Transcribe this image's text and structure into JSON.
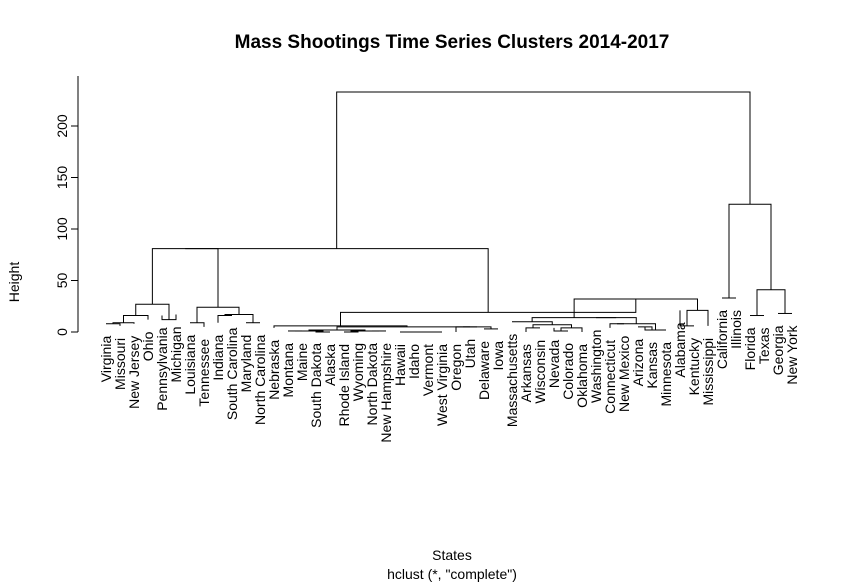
{
  "chart_data": {
    "type": "dendrogram",
    "title": "Mass Shootings Time Series Clusters 2014-2017",
    "xlabel": "States",
    "subtitle": "hclust (*, \"complete\")",
    "ylabel": "Height",
    "ylim": [
      0,
      240
    ],
    "yticks": [
      0,
      50,
      100,
      150,
      200
    ],
    "leaves": [
      "Virginia",
      "Missouri",
      "New Jersey",
      "Ohio",
      "Pennsylvania",
      "Michigan",
      "Louisiana",
      "Tennessee",
      "Indiana",
      "South Carolina",
      "Maryland",
      "North Carolina",
      "Nebraska",
      "Montana",
      "Maine",
      "South Dakota",
      "Alaska",
      "Rhode Island",
      "Wyoming",
      "North Dakota",
      "New Hampshire",
      "Hawaii",
      "Idaho",
      "Vermont",
      "West Virginia",
      "Oregon",
      "Utah",
      "Delaware",
      "Iowa",
      "Massachusetts",
      "Arkansas",
      "Wisconsin",
      "Nevada",
      "Colorado",
      "Oklahoma",
      "Washington",
      "Connecticut",
      "New Mexico",
      "Arizona",
      "Kansas",
      "Minnesota",
      "Alabama",
      "Kentucky",
      "Mississippi",
      "California",
      "Illinois",
      "Florida",
      "Texas",
      "Georgia",
      "New York"
    ],
    "leaf_heights": [
      8,
      6,
      8,
      12,
      16,
      17,
      9,
      5,
      9,
      16,
      9,
      9,
      4,
      1,
      1,
      1,
      0,
      0,
      1,
      1,
      1,
      0,
      0,
      0,
      0,
      0,
      5,
      3,
      3,
      10,
      0,
      4,
      4,
      1,
      0,
      14,
      4,
      8,
      5,
      2,
      2,
      21,
      6,
      6,
      33,
      33,
      16,
      16,
      18,
      18
    ],
    "merges": [
      [
        [
          0,
          1
        ],
        8
      ],
      [
        [
          0,
          2
        ],
        9
      ],
      [
        [
          0,
          3
        ],
        16
      ],
      [
        [
          4,
          5
        ],
        12
      ],
      [
        [
          0,
          4
        ],
        27
      ],
      [
        [
          6,
          7
        ],
        9
      ],
      [
        [
          8,
          9
        ],
        16
      ],
      [
        [
          10,
          11
        ],
        9
      ],
      [
        [
          8,
          10
        ],
        17
      ],
      [
        [
          6,
          8
        ],
        24
      ],
      [
        [
          0,
          6
        ],
        81
      ],
      [
        [
          13,
          14
        ],
        1
      ],
      [
        [
          15,
          16
        ],
        0
      ],
      [
        [
          13,
          15
        ],
        1
      ],
      [
        [
          17,
          18
        ],
        0
      ],
      [
        [
          19,
          20
        ],
        1
      ],
      [
        [
          17,
          19
        ],
        1
      ],
      [
        [
          13,
          17
        ],
        2
      ],
      [
        [
          21,
          22
        ],
        0
      ],
      [
        [
          23,
          24
        ],
        0
      ],
      [
        [
          21,
          23
        ],
        0
      ],
      [
        [
          25,
          26
        ],
        5
      ],
      [
        [
          27,
          28
        ],
        3
      ],
      [
        [
          25,
          27
        ],
        5
      ],
      [
        [
          13,
          25
        ],
        5
      ],
      [
        [
          12,
          13
        ],
        6
      ],
      [
        [
          30,
          31
        ],
        4
      ],
      [
        [
          32,
          33
        ],
        1
      ],
      [
        [
          32,
          34
        ],
        4
      ],
      [
        [
          30,
          32
        ],
        7
      ],
      [
        [
          29,
          30
        ],
        10
      ],
      [
        [
          36,
          37
        ],
        8
      ],
      [
        [
          38,
          39
        ],
        5
      ],
      [
        [
          38,
          40
        ],
        2
      ],
      [
        [
          36,
          38
        ],
        8
      ],
      [
        [
          35,
          36
        ],
        14
      ],
      [
        [
          29,
          35
        ],
        14
      ],
      [
        [
          41,
          42
        ],
        6
      ],
      [
        [
          41,
          43
        ],
        21
      ],
      [
        [
          29,
          41
        ],
        32
      ],
      [
        [
          12,
          29
        ],
        19
      ],
      [
        [
          0,
          12
        ],
        81
      ],
      [
        [
          44,
          45
        ],
        33
      ],
      [
        [
          46,
          47
        ],
        16
      ],
      [
        [
          48,
          49
        ],
        18
      ],
      [
        [
          46,
          48
        ],
        41
      ],
      [
        [
          44,
          46
        ],
        124
      ],
      [
        [
          0,
          44
        ],
        233
      ]
    ]
  }
}
